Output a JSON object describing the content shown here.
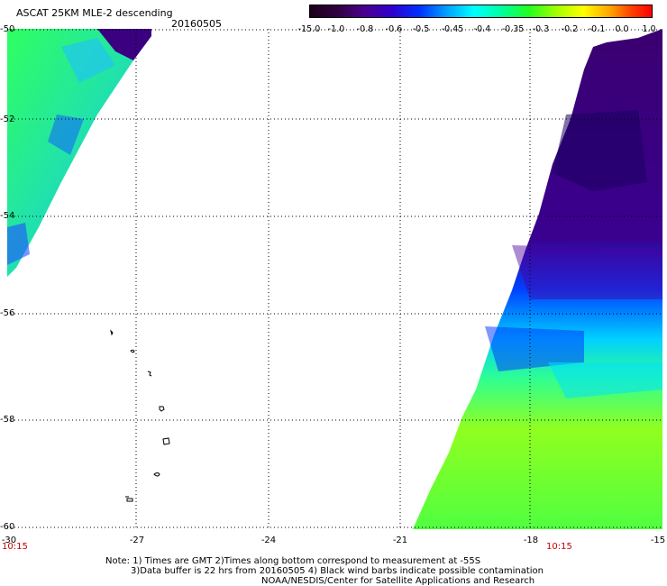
{
  "header": {
    "title": "ASCAT 25KM MLE-2 descending",
    "date": "20160505"
  },
  "colorbar": {
    "ticks": [
      "-15.0",
      "-1.0",
      "-0.8",
      "-0.6",
      "-0.5",
      "-0.45",
      "-0.4",
      "-0.35",
      "-0.3",
      "-0.2",
      "-0.1",
      "0.0",
      "1.0"
    ]
  },
  "axes": {
    "lat_labels": [
      "-50",
      "-52",
      "-54",
      "-56",
      "-58",
      "-60"
    ],
    "lon_labels": [
      "-30",
      "-27",
      "-24",
      "-21",
      "-18",
      "-15"
    ],
    "time_left": "10:15",
    "time_right": "10:15"
  },
  "notes": {
    "line1": "Note: 1) Times are GMT 2)Times along bottom correspond to measurement at -55S",
    "line2": "3)Data buffer is 22 hrs from 20160505 4) Black wind barbs indicate possible contamination",
    "line3": "NOAA/NESDIS/Center for Satellite Applications and Research"
  },
  "colors": {
    "grid": "#000000",
    "time_label": "#cc0000"
  }
}
